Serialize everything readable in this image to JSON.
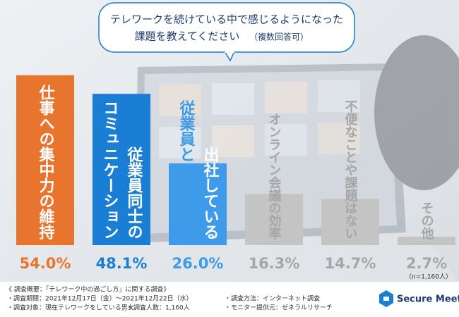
{
  "chart_data": {
    "type": "bar",
    "title": [
      "テレワークを続けている中で感じるようになった",
      "課題を教えてください"
    ],
    "subtitle": "（複数回答可）",
    "categories": [
      [
        "仕事への集中力の維持"
      ],
      [
        "従業員同士の",
        "コミュニケーション"
      ],
      [
        "出社している",
        "従業員との情報格差"
      ],
      [
        "オンライン会議の効率"
      ],
      [
        "不便なことや課題はない"
      ],
      [
        "その他"
      ]
    ],
    "values": [
      54.0,
      48.1,
      26.0,
      16.3,
      14.7,
      2.7
    ],
    "value_labels": [
      "54.0%",
      "48.1%",
      "26.0%",
      "16.3%",
      "14.7%",
      "2.7%"
    ],
    "colors": [
      "#e8742e",
      "#1a7fd4",
      "#3d9be9",
      "#c4c4c4",
      "#c4c4c4",
      "#c4c4c4"
    ],
    "label_colors": [
      "#e8742e",
      "#1a7fd4",
      "#3d9be9",
      "#a6a6a6",
      "#a6a6a6",
      "#a6a6a6"
    ],
    "ylim": [
      0,
      60
    ],
    "sample_note": "（n=1,160人）"
  },
  "footer": {
    "heading": "《 調査概要：「テレワーク中の過ごし方」に関する調査》",
    "items": [
      "・調査期間：2021年12月17日（金）～2021年12月22日（水）",
      "・調査対象：現在テレワークをしている男女",
      "・調査人数：1,160人",
      "・調査方法：インターネット調査",
      "・モニター提供元：ゼネラルリサーチ"
    ]
  },
  "logo": {
    "text": "Secure Meet"
  }
}
